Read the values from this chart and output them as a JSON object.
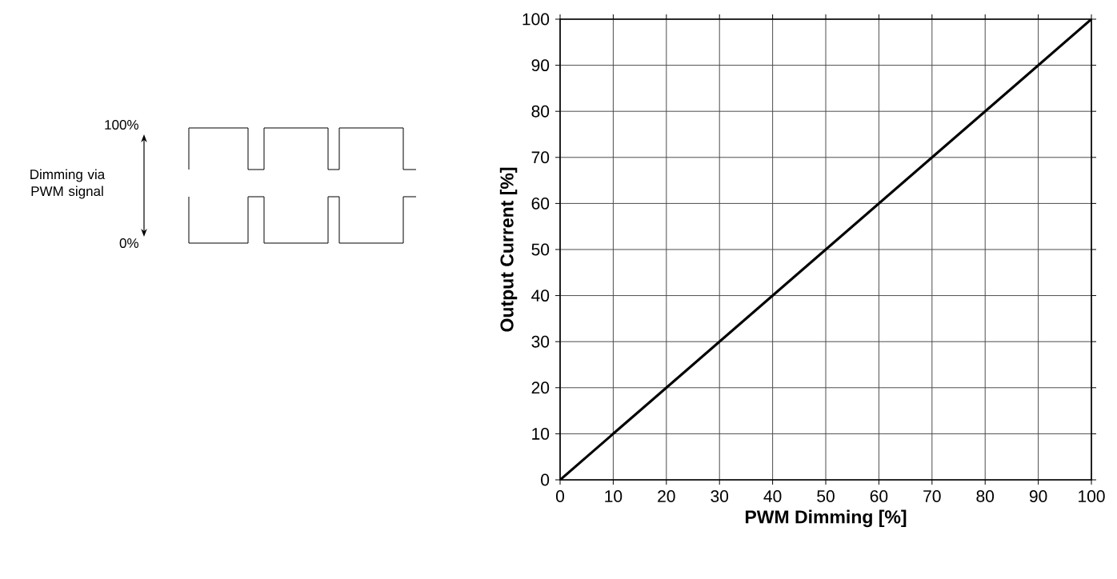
{
  "chart_data": {
    "type": "line",
    "xlabel": "PWM Dimming [%]",
    "ylabel": "Output Current [%]",
    "x": [
      0,
      100
    ],
    "series": [
      {
        "color": "#000000",
        "values": [
          0,
          100
        ]
      }
    ],
    "xlim": [
      0,
      100
    ],
    "ylim": [
      0,
      100
    ],
    "xticks": [
      0,
      10,
      20,
      30,
      40,
      50,
      60,
      70,
      80,
      90,
      100
    ],
    "yticks": [
      0,
      10,
      20,
      30,
      40,
      50,
      60,
      70,
      80,
      90,
      100
    ],
    "grid": true,
    "annotations": [
      "100%",
      "Dimming via PWM signal",
      "0%"
    ]
  }
}
